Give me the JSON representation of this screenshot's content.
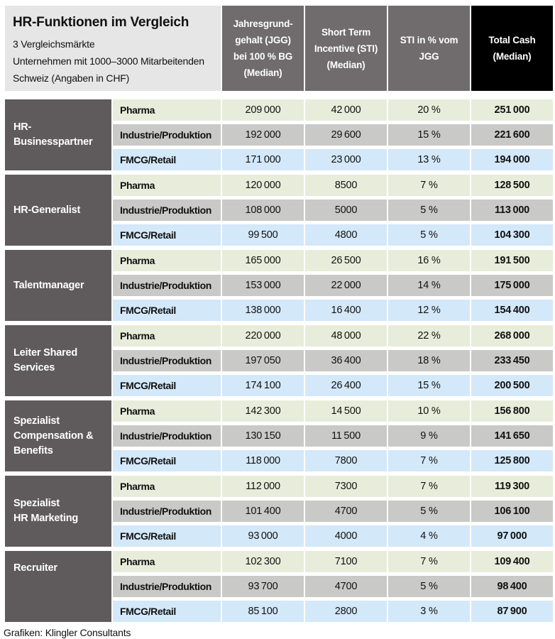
{
  "colors": {
    "title_block_bg": "#e7e6e6",
    "header_bg": "#706c6d",
    "header_total_cash_bg": "#000000",
    "header_text": "#ffffff",
    "group_cell_bg": "#5f5b5c",
    "group_cell_text": "#ffffff",
    "row_pharma_bg": "#e7edda",
    "row_industrie_bg": "#c9c9c7",
    "row_fmcg_bg": "#d3e8f9",
    "text": "#111111"
  },
  "chart_data": {
    "type": "table",
    "title": "HR-Funktionen im Vergleich",
    "subtitle_lines": [
      "3 Vergleichsmärkte",
      "Unternehmen mit 1000–3000 Mitarbeitenden",
      "Schweiz (Angaben in CHF)"
    ],
    "columns": [
      {
        "id": "jgg",
        "label_lines": [
          "Jahresgrund-",
          "gehalt (JGG)",
          "bei 100 % BG",
          "(Median)"
        ]
      },
      {
        "id": "sti",
        "label_lines": [
          "Short Term",
          "Incentive (STI)",
          "(Median)"
        ]
      },
      {
        "id": "sti_pct",
        "label_lines": [
          "STI in % vom",
          "JGG"
        ]
      },
      {
        "id": "total_cash",
        "label_lines": [
          "Total Cash",
          "(Median)"
        ]
      }
    ],
    "groups": [
      {
        "function_lines": [
          "HR-Businesspartner"
        ],
        "label_align": "center",
        "rows": [
          {
            "market": "Pharma",
            "jgg": 209000,
            "sti": 42000,
            "sti_pct": 20,
            "total_cash": 251000
          },
          {
            "market": "Industrie/Produktion",
            "jgg": 192000,
            "sti": 29600,
            "sti_pct": 15,
            "total_cash": 221600
          },
          {
            "market": "FMCG/Retail",
            "jgg": 171000,
            "sti": 23000,
            "sti_pct": 13,
            "total_cash": 194000
          }
        ]
      },
      {
        "function_lines": [
          "HR-Generalist"
        ],
        "label_align": "center",
        "rows": [
          {
            "market": "Pharma",
            "jgg": 120000,
            "sti": 8500,
            "sti_pct": 7,
            "total_cash": 128500
          },
          {
            "market": "Industrie/Produktion",
            "jgg": 108000,
            "sti": 5000,
            "sti_pct": 5,
            "total_cash": 113000
          },
          {
            "market": "FMCG/Retail",
            "jgg": 99500,
            "sti": 4800,
            "sti_pct": 5,
            "total_cash": 104300
          }
        ]
      },
      {
        "function_lines": [
          "Talentmanager"
        ],
        "label_align": "center",
        "rows": [
          {
            "market": "Pharma",
            "jgg": 165000,
            "sti": 26500,
            "sti_pct": 16,
            "total_cash": 191500
          },
          {
            "market": "Industrie/Produktion",
            "jgg": 153000,
            "sti": 22000,
            "sti_pct": 14,
            "total_cash": 175000
          },
          {
            "market": "FMCG/Retail",
            "jgg": 138000,
            "sti": 16400,
            "sti_pct": 12,
            "total_cash": 154400
          }
        ]
      },
      {
        "function_lines": [
          "Leiter Shared",
          "Services"
        ],
        "label_align": "center",
        "rows": [
          {
            "market": "Pharma",
            "jgg": 220000,
            "sti": 48000,
            "sti_pct": 22,
            "total_cash": 268000
          },
          {
            "market": "Industrie/Produktion",
            "jgg": 197050,
            "sti": 36400,
            "sti_pct": 18,
            "total_cash": 233450
          },
          {
            "market": "FMCG/Retail",
            "jgg": 174100,
            "sti": 26400,
            "sti_pct": 15,
            "total_cash": 200500
          }
        ]
      },
      {
        "function_lines": [
          "Spezialist",
          "Compensation &",
          "Benefits"
        ],
        "label_align": "center",
        "rows": [
          {
            "market": "Pharma",
            "jgg": 142300,
            "sti": 14500,
            "sti_pct": 10,
            "total_cash": 156800
          },
          {
            "market": "Industrie/Produktion",
            "jgg": 130150,
            "sti": 11500,
            "sti_pct": 9,
            "total_cash": 141650
          },
          {
            "market": "FMCG/Retail",
            "jgg": 118000,
            "sti": 7800,
            "sti_pct": 7,
            "total_cash": 125800
          }
        ]
      },
      {
        "function_lines": [
          "Spezialist",
          "HR Marketing"
        ],
        "label_align": "center",
        "rows": [
          {
            "market": "Pharma",
            "jgg": 112000,
            "sti": 7300,
            "sti_pct": 7,
            "total_cash": 119300
          },
          {
            "market": "Industrie/Produktion",
            "jgg": 101400,
            "sti": 4700,
            "sti_pct": 5,
            "total_cash": 106100
          },
          {
            "market": "FMCG/Retail",
            "jgg": 93000,
            "sti": 4000,
            "sti_pct": 4,
            "total_cash": 97000
          }
        ]
      },
      {
        "function_lines": [
          "Recruiter"
        ],
        "label_align": "top",
        "rows": [
          {
            "market": "Pharma",
            "jgg": 102300,
            "sti": 7100,
            "sti_pct": 7,
            "total_cash": 109400
          },
          {
            "market": "Industrie/Produktion",
            "jgg": 93700,
            "sti": 4700,
            "sti_pct": 5,
            "total_cash": 98400
          },
          {
            "market": "FMCG/Retail",
            "jgg": 85100,
            "sti": 2800,
            "sti_pct": 3,
            "total_cash": 87900
          }
        ]
      }
    ],
    "source": "Grafiken: Klingler Consultants"
  }
}
